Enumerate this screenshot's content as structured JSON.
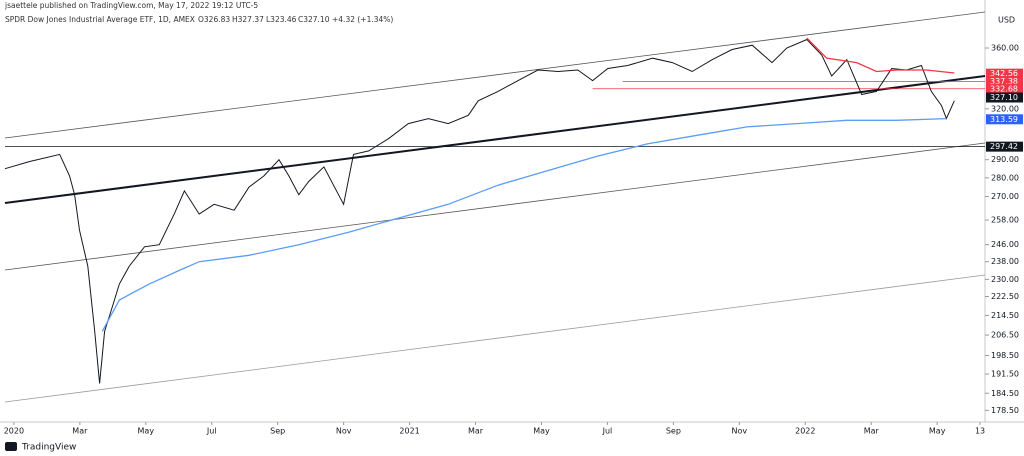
{
  "header": {
    "publisher": "jsaettele published on TradingView.com, May 17, 2022 19:12 UTC-5",
    "footer": "TradingView"
  },
  "chart_data": {
    "type": "line",
    "title": "SPDR Dow Jones Industrial Average ETF, 1D, AMEX",
    "ohlc_text": [
      "O326.83",
      "H327.37",
      "L323.46",
      "C327.10",
      "+4.32 (+1.34%)"
    ],
    "currency": "USD",
    "log_scale": true,
    "grid": false,
    "xlim": [
      -0.27,
      29.45
    ],
    "ylim": [
      173.5,
      389
    ],
    "xticks": [
      {
        "value": 0,
        "label": "2020"
      },
      {
        "value": 2,
        "label": "Mar"
      },
      {
        "value": 4,
        "label": "May"
      },
      {
        "value": 6,
        "label": "Jul"
      },
      {
        "value": 8,
        "label": "Sep"
      },
      {
        "value": 10,
        "label": "Nov"
      },
      {
        "value": 12,
        "label": "2021"
      },
      {
        "value": 14,
        "label": "Mar"
      },
      {
        "value": 16,
        "label": "May"
      },
      {
        "value": 18,
        "label": "Jul"
      },
      {
        "value": 20,
        "label": "Sep"
      },
      {
        "value": 22,
        "label": "Nov"
      },
      {
        "value": 24,
        "label": "2022"
      },
      {
        "value": 26,
        "label": "Mar"
      },
      {
        "value": 28,
        "label": "May"
      },
      {
        "value": 29.3,
        "label": "13"
      }
    ],
    "yticks": [
      {
        "value": 360,
        "label": "360.00"
      },
      {
        "value": 320,
        "label": "320.00"
      },
      {
        "value": 290,
        "label": "290.00"
      },
      {
        "value": 280,
        "label": "280.00"
      },
      {
        "value": 270,
        "label": "270.00"
      },
      {
        "value": 258,
        "label": "258.00"
      },
      {
        "value": 246,
        "label": "246.00"
      },
      {
        "value": 238,
        "label": "238.00"
      },
      {
        "value": 230,
        "label": "230.00"
      },
      {
        "value": 222.5,
        "label": "222.50"
      },
      {
        "value": 214.5,
        "label": "214.50"
      },
      {
        "value": 206.5,
        "label": "206.50"
      },
      {
        "value": 198.5,
        "label": "198.50"
      },
      {
        "value": 191.5,
        "label": "191.50"
      },
      {
        "value": 184.5,
        "label": "184.50"
      },
      {
        "value": 178.5,
        "label": "178.50"
      }
    ],
    "series": [
      {
        "color": "#131722",
        "x": [
          -0.27,
          0.48,
          1.39,
          1.69,
          1.84,
          1.99,
          2.24,
          2.45,
          2.6,
          2.75,
          2.96,
          3.2,
          3.5,
          3.96,
          4.41,
          4.86,
          5.17,
          5.62,
          6.07,
          6.68,
          7.13,
          7.58,
          8.04,
          8.34,
          8.64,
          8.94,
          9.4,
          10,
          10.3,
          10.76,
          11.36,
          11.96,
          12.57,
          13.17,
          13.78,
          14.08,
          14.68,
          15.29,
          15.89,
          16.5,
          17.1,
          17.55,
          18.01,
          18.61,
          19.37,
          19.97,
          20.57,
          21.18,
          21.78,
          22.39,
          22.99,
          23.44,
          24.05,
          24.5,
          24.8,
          25.26,
          25.71,
          26.16,
          26.62,
          27.07,
          27.52,
          27.82,
          28.13,
          28.28,
          28.52
        ],
        "values": [
          285,
          289,
          293,
          281,
          271,
          253,
          236,
          208,
          188,
          208,
          217,
          228,
          236,
          245,
          246,
          261,
          273,
          261,
          266,
          263,
          275,
          281,
          290,
          281,
          271,
          278,
          286,
          266,
          293,
          295,
          302,
          311,
          314,
          311,
          316,
          325,
          331,
          338,
          345,
          344,
          345,
          338,
          346,
          348,
          353,
          350,
          344,
          352,
          359,
          362,
          350,
          360,
          366,
          355,
          341,
          352,
          329,
          331,
          346,
          345,
          348,
          331,
          322,
          314,
          325
        ]
      },
      {
        "color": "#5b9cf6",
        "x": [
          2.68,
          3.2,
          4.11,
          5.01,
          5.62,
          7.13,
          8.64,
          10.15,
          11.66,
          13.17,
          14.68,
          16.2,
          17.7,
          19.21,
          20.72,
          22.23,
          23.74,
          25.26,
          26.77,
          28.28
        ],
        "values": [
          208,
          221,
          228,
          234,
          238,
          241,
          246,
          252,
          259,
          266,
          276,
          284,
          292,
          299,
          304,
          309,
          311,
          313,
          313,
          314
        ]
      },
      {
        "color": "#f23645",
        "x": [
          24.05,
          24.65,
          25.56,
          26.16,
          26.77,
          27.67,
          28.52
        ],
        "values": [
          367,
          353,
          350,
          344,
          345,
          345,
          343
        ]
      }
    ],
    "levels": [
      {
        "value": 337.38,
        "start": 18.46,
        "color": "#f23645"
      },
      {
        "value": 332.68,
        "start": 17.55,
        "color": "#f23645"
      },
      {
        "value": 297.42,
        "start": -0.27,
        "color": "#131722"
      }
    ],
    "price_labels": [
      {
        "value": 342.56,
        "color": "#f23645"
      },
      {
        "value": 337.38,
        "color": "#f23645"
      },
      {
        "value": 332.68,
        "color": "#f23645"
      },
      {
        "value": 327.1,
        "label": "327.10",
        "color": "#131722"
      },
      {
        "value": 313.59,
        "color": "#2962ff"
      },
      {
        "value": 297.42,
        "color": "#131722"
      }
    ]
  }
}
